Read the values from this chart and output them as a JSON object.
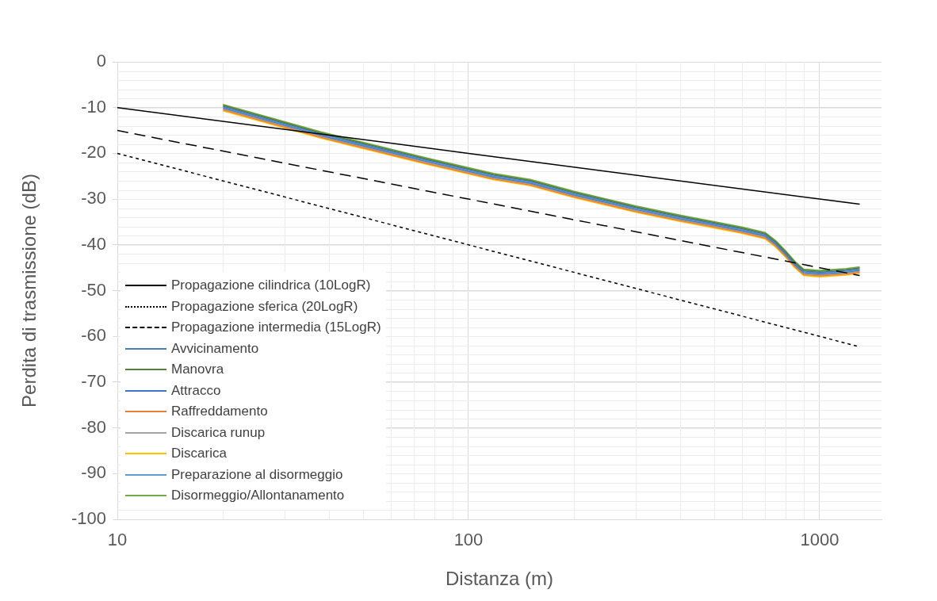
{
  "chart_data": {
    "type": "line",
    "xlabel": "Distanza (m)",
    "ylabel": "Perdita di trasmissione (dB)",
    "log": "x",
    "xlim": [
      10,
      1500
    ],
    "xticks": [
      10,
      100,
      1000
    ],
    "ylim": [
      -100,
      0
    ],
    "yticks": [
      -100,
      -90,
      -80,
      -70,
      -60,
      -50,
      -40,
      -30,
      -20,
      -10,
      0
    ],
    "grid": true,
    "legend": "bottom left",
    "marker": "none",
    "series": [
      {
        "name": "Propagazione cilindrica (10LogR)",
        "color": "#000000",
        "line_style": "solid",
        "x": [
          10,
          100,
          1000,
          1300
        ],
        "values": [
          -10,
          -20,
          -30,
          -31.1
        ]
      },
      {
        "name": "Propagazione sferica (20LogR)",
        "color": "#000000",
        "line_style": "dotted",
        "x": [
          10,
          100,
          1000,
          1300
        ],
        "values": [
          -20,
          -40,
          -60,
          -62.3
        ]
      },
      {
        "name": "Propagazione intermedia (15LogR)",
        "color": "#000000",
        "line_style": "dashed",
        "x": [
          10,
          100,
          1000,
          1300
        ],
        "values": [
          -15,
          -30,
          -45,
          -46.7
        ]
      },
      {
        "name": "Avvicinamento",
        "color": "#4a7ebb",
        "line_style": "solid",
        "x": [
          20,
          38,
          77,
          118,
          150,
          200,
          300,
          400,
          500,
          600,
          700,
          750,
          800,
          850,
          900,
          1000,
          1190,
          1300
        ],
        "values": [
          -10.1,
          -16.1,
          -21.9,
          -25.2,
          -26.5,
          -29.1,
          -32.3,
          -34.3,
          -35.7,
          -36.9,
          -38.1,
          -39.9,
          -42.1,
          -44.4,
          -46.1,
          -46.4,
          -46,
          -45.6
        ]
      },
      {
        "name": "Manovra",
        "color": "#548235",
        "line_style": "solid",
        "x": [
          20,
          38,
          77,
          118,
          150,
          200,
          300,
          400,
          500,
          600,
          700,
          750,
          800,
          850,
          900,
          1000,
          1190,
          1300
        ],
        "values": [
          -9.5,
          -15.5,
          -21.3,
          -24.6,
          -25.9,
          -28.5,
          -31.7,
          -33.7,
          -35.1,
          -36.3,
          -37.5,
          -39.3,
          -41.5,
          -43.8,
          -45.5,
          -45.8,
          -45.4,
          -45
        ]
      },
      {
        "name": "Attracco",
        "color": "#4472c4",
        "line_style": "solid",
        "x": [
          20,
          38,
          77,
          118,
          150,
          200,
          300,
          400,
          500,
          600,
          700,
          750,
          800,
          850,
          900,
          1000,
          1190,
          1300
        ],
        "values": [
          -9.7,
          -15.7,
          -21.5,
          -24.8,
          -26.1,
          -28.7,
          -31.9,
          -33.9,
          -35.3,
          -36.5,
          -37.7,
          -39.5,
          -41.7,
          -44,
          -45.7,
          -46,
          -45.6,
          -45.2
        ]
      },
      {
        "name": "Raffreddamento",
        "color": "#ed7d31",
        "line_style": "solid",
        "x": [
          20,
          38,
          77,
          118,
          150,
          200,
          300,
          400,
          500,
          600,
          700,
          750,
          800,
          850,
          900,
          1000,
          1190,
          1300
        ],
        "values": [
          -10.5,
          -16.5,
          -22.3,
          -25.6,
          -26.9,
          -29.5,
          -32.7,
          -34.7,
          -36.1,
          -37.3,
          -38.5,
          -40.3,
          -42.5,
          -44.8,
          -46.5,
          -46.8,
          -46.4,
          -46
        ]
      },
      {
        "name": "Discarica runup",
        "color": "#a5a5a5",
        "line_style": "solid",
        "x": [
          20,
          38,
          77,
          118,
          150,
          200,
          300,
          400,
          500,
          600,
          700,
          750,
          800,
          850,
          900,
          1000,
          1190,
          1300
        ],
        "values": [
          -10.3,
          -16.3,
          -22.1,
          -25.4,
          -26.7,
          -29.3,
          -32.5,
          -34.5,
          -35.9,
          -37.1,
          -38.3,
          -40.1,
          -42.3,
          -44.6,
          -46.3,
          -46.6,
          -46.2,
          -45.8
        ]
      },
      {
        "name": "Discarica",
        "color": "#ffc000",
        "line_style": "solid",
        "x": [
          20,
          38,
          77,
          118,
          150,
          200,
          300,
          400,
          500,
          600,
          700,
          750,
          800,
          850,
          900,
          1000,
          1190,
          1300
        ],
        "values": [
          -10.7,
          -16.7,
          -22.5,
          -25.8,
          -27.1,
          -29.7,
          -32.9,
          -34.9,
          -36.3,
          -37.5,
          -38.7,
          -40.5,
          -42.7,
          -45,
          -46.7,
          -47,
          -46.6,
          -46.2
        ]
      },
      {
        "name": "Preparazione al disormeggio",
        "color": "#5b9bd5",
        "line_style": "solid",
        "x": [
          20,
          38,
          77,
          118,
          150,
          200,
          300,
          400,
          500,
          600,
          700,
          750,
          800,
          850,
          900,
          1000,
          1190,
          1300
        ],
        "values": [
          -9.9,
          -15.9,
          -21.7,
          -25,
          -26.3,
          -28.9,
          -32.1,
          -34.1,
          -35.5,
          -36.7,
          -37.9,
          -39.7,
          -41.9,
          -44.2,
          -45.9,
          -46.2,
          -45.8,
          -45.4
        ]
      },
      {
        "name": "Disormeggio/Allontanamento",
        "color": "#70ad47",
        "line_style": "solid",
        "x": [
          20,
          38,
          77,
          118,
          150,
          200,
          300,
          400,
          500,
          600,
          700,
          750,
          800,
          850,
          900,
          1000,
          1190,
          1300
        ],
        "values": [
          -9.3,
          -15.3,
          -21.1,
          -24.4,
          -25.7,
          -28.3,
          -31.5,
          -33.5,
          -34.9,
          -36.1,
          -37.3,
          -39.1,
          -41.3,
          -43.6,
          -45.3,
          -45.6,
          -45.2,
          -44.8
        ]
      }
    ]
  }
}
